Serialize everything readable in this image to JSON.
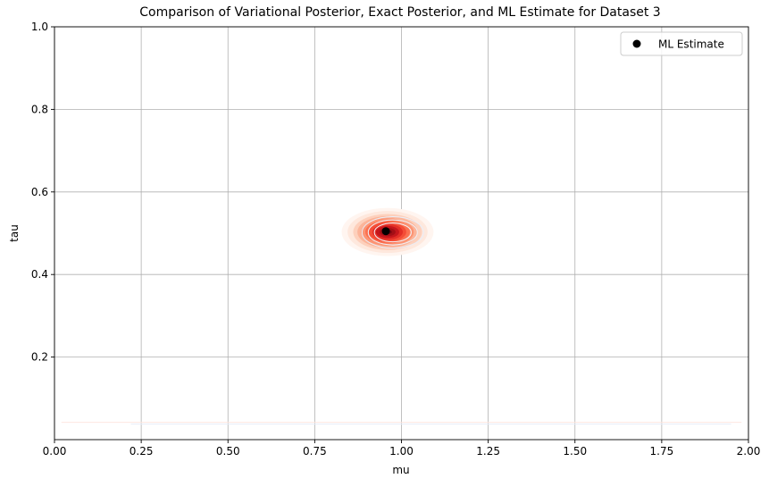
{
  "chart_data": {
    "type": "scatter",
    "title": "Comparison of Variational Posterior, Exact Posterior, and ML Estimate for Dataset 3",
    "xlabel": "mu",
    "ylabel": "tau",
    "xlim": [
      0.0,
      2.0
    ],
    "ylim": [
      0.0,
      1.0
    ],
    "x_ticks": [
      0.0,
      0.25,
      0.5,
      0.75,
      1.0,
      1.25,
      1.5,
      1.75,
      2.0
    ],
    "x_tick_labels": [
      "0.00",
      "0.25",
      "0.50",
      "0.75",
      "1.00",
      "1.25",
      "1.50",
      "1.75",
      "2.00"
    ],
    "y_ticks": [
      0.2,
      0.4,
      0.6,
      0.8,
      1.0
    ],
    "y_tick_labels": [
      "0.2",
      "0.4",
      "0.6",
      "0.8",
      "1.0"
    ],
    "grid": true,
    "legend_position": "top-right",
    "series": [
      {
        "name": "ML Estimate",
        "kind": "point",
        "x": [
          0.955
        ],
        "y": [
          0.505
        ],
        "color": "#000000"
      }
    ],
    "contours": [
      {
        "kind": "gaussian-posterior",
        "colormap": "Reds",
        "center": [
          0.96,
          0.503
        ],
        "spread": [
          0.05,
          0.022
        ],
        "levels": [
          0.03,
          0.07,
          0.14,
          0.22,
          0.32,
          0.44,
          0.56,
          0.68,
          0.8,
          0.9,
          0.97
        ],
        "colors": [
          "#fff5f0",
          "#fee8dd",
          "#fdd0bc",
          "#fcb499",
          "#fc9474",
          "#fb7050",
          "#f44d37",
          "#e32f27",
          "#c4161c",
          "#a30f15",
          "#7e0610"
        ]
      },
      {
        "kind": "outer-faint",
        "colormap": "Blues",
        "center": [
          0.975,
          0.502
        ],
        "spread": [
          0.07,
          0.03
        ],
        "levels": [
          0.45,
          0.6,
          0.75
        ],
        "colors": [
          "#e9eef8",
          "#eef2f9",
          "#f3f6fb"
        ]
      },
      {
        "kind": "low-tau-band",
        "y_value": 0.042,
        "colors": [
          "#fde7e1",
          "#e8eef8"
        ]
      }
    ]
  }
}
